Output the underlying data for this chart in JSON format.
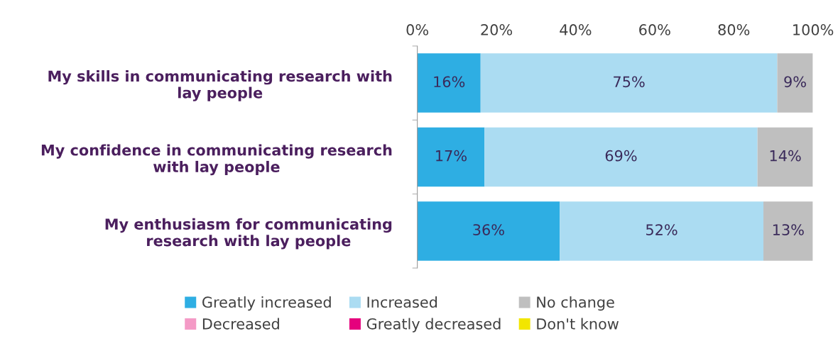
{
  "chart_data": {
    "type": "bar",
    "orientation": "horizontal",
    "stacked": true,
    "categories": [
      "My skills in communicating research with\nlay people",
      "My confidence in communicating research\nwith lay people",
      "My enthusiasm for communicating\nresearch with lay people"
    ],
    "series": [
      {
        "name": "Greatly increased",
        "color": "#2eaee3",
        "values": [
          16,
          17,
          36
        ],
        "value_labels": [
          "16%",
          "17%",
          "36%"
        ]
      },
      {
        "name": "Increased",
        "color": "#abdcf2",
        "values": [
          75,
          69,
          51.5
        ],
        "value_labels": [
          "75%",
          "69%",
          "52%"
        ]
      },
      {
        "name": "No change",
        "color": "#bfbfbf",
        "values": [
          9,
          14,
          12.5
        ],
        "value_labels": [
          "9%",
          "14%",
          "13%"
        ]
      },
      {
        "name": "Decreased",
        "color": "#f49ac6",
        "values": [
          0,
          0,
          0
        ]
      },
      {
        "name": "Greatly decreased",
        "color": "#e5007d",
        "values": [
          0,
          0,
          0
        ]
      },
      {
        "name": "Don't know",
        "color": "#f2e600",
        "values": [
          0,
          0,
          0
        ]
      }
    ],
    "xlim": [
      0,
      100
    ],
    "xticks": [
      {
        "value": 0,
        "label": "0%"
      },
      {
        "value": 20,
        "label": "20%"
      },
      {
        "value": 40,
        "label": "40%"
      },
      {
        "value": 60,
        "label": "60%"
      },
      {
        "value": 80,
        "label": "80%"
      },
      {
        "value": 100,
        "label": "100%"
      }
    ],
    "grid": false,
    "legend": "bottom"
  }
}
